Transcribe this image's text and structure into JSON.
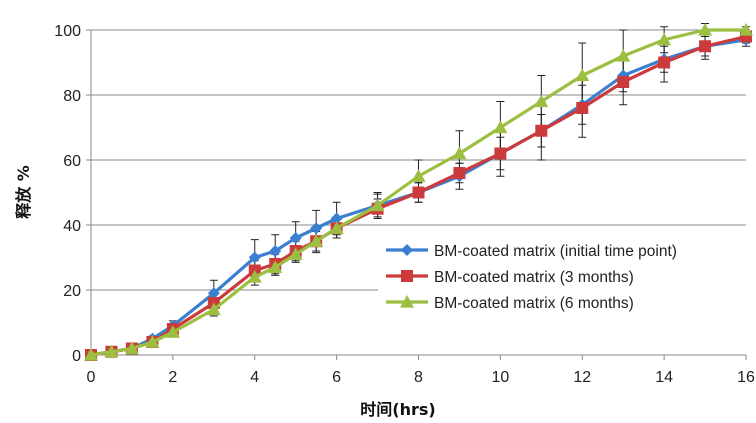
{
  "chart_data": {
    "type": "line",
    "title": "",
    "xlabel": "时间(hrs)",
    "ylabel": "释放 %",
    "xlim": [
      0,
      16
    ],
    "ylim": [
      0,
      100
    ],
    "x_ticks": [
      0,
      2,
      4,
      6,
      8,
      10,
      12,
      14,
      16
    ],
    "y_ticks": [
      0,
      20,
      40,
      60,
      80,
      100
    ],
    "grid": "horizontal",
    "legend_position": "lower-right",
    "series": [
      {
        "name": "BM-coated matrix (initial time point)",
        "color": "#3b7fd0",
        "marker": "diamond",
        "x": [
          0,
          0.5,
          1,
          1.5,
          2,
          3,
          4,
          4.5,
          5,
          5.5,
          6,
          7,
          8,
          9,
          10,
          11,
          12,
          13,
          14,
          15,
          16
        ],
        "y": [
          0,
          1,
          2,
          5,
          9,
          19,
          30,
          32,
          36,
          39,
          42,
          46,
          50,
          55,
          62,
          69,
          77,
          86,
          91,
          95,
          97
        ],
        "error": [
          0,
          0,
          0.5,
          0.8,
          1.5,
          4,
          5.5,
          5,
          5,
          5.5,
          5,
          4,
          3,
          4,
          5,
          5,
          6,
          5,
          4,
          3,
          2
        ]
      },
      {
        "name": "BM-coated matrix (3 months)",
        "color": "#cc3b3b",
        "marker": "square",
        "x": [
          0,
          0.5,
          1,
          1.5,
          2,
          3,
          4,
          4.5,
          5,
          5.5,
          6,
          7,
          8,
          9,
          10,
          11,
          12,
          13,
          14,
          15,
          16
        ],
        "y": [
          0,
          1,
          2,
          4,
          8,
          16,
          26,
          28,
          32,
          35,
          39,
          45,
          50,
          56,
          62,
          69,
          76,
          84,
          90,
          95,
          98
        ],
        "error": [
          0,
          0,
          0.5,
          0.8,
          1.2,
          2.5,
          3,
          3,
          3,
          3.5,
          3,
          3,
          3,
          3,
          7,
          9,
          9,
          7,
          6,
          4,
          2
        ]
      },
      {
        "name": "BM-coated matrix (6 months)",
        "color": "#9cbf41",
        "marker": "triangle",
        "x": [
          0,
          0.5,
          1,
          1.5,
          2,
          3,
          4,
          4.5,
          5,
          5.5,
          6,
          7,
          8,
          9,
          10,
          11,
          12,
          13,
          14,
          15,
          16
        ],
        "y": [
          0,
          1,
          2,
          4,
          7,
          14,
          24,
          27,
          31,
          35,
          39,
          46,
          55,
          62,
          70,
          78,
          86,
          92,
          97,
          100,
          100
        ],
        "error": [
          0,
          0,
          0.5,
          0.5,
          1,
          2,
          2.5,
          2.5,
          2.5,
          3,
          3,
          3.5,
          5,
          7,
          8,
          8,
          10,
          8,
          4,
          2,
          1
        ]
      }
    ]
  }
}
